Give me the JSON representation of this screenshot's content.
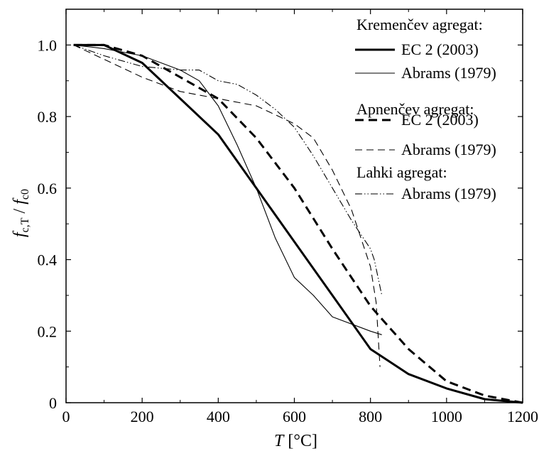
{
  "chart_data": {
    "type": "line",
    "xlabel": {
      "var": "T",
      "unit": " [°C]"
    },
    "ylabel": {
      "f1": "f",
      "s1": "c,T",
      "sep": " / ",
      "f2": "f",
      "s2": "c0"
    },
    "xlim": [
      0,
      1200
    ],
    "ylim": [
      0,
      1.1
    ],
    "xticks": [
      0,
      200,
      400,
      600,
      800,
      1000,
      1200
    ],
    "yticks": [
      0,
      0.2,
      0.4,
      0.6,
      0.8,
      1.0
    ],
    "xtick_labels": [
      "0",
      "200",
      "400",
      "600",
      "800",
      "1000",
      "1200"
    ],
    "ytick_labels": [
      "0",
      "0.2",
      "0.4",
      "0.6",
      "0.8",
      "1.0"
    ],
    "grid": false,
    "legend_position": "top-right",
    "legend_groups": [
      {
        "title": "Kremenčev agregat:",
        "entries": [
          {
            "label": "EC 2 (2003)",
            "series": 0
          },
          {
            "label": "Abrams (1979)",
            "series": 1
          }
        ]
      },
      {
        "title": "Apnenčev agregat:",
        "entries": [
          {
            "label": "EC 2 (2003)",
            "series": 2
          },
          {
            "label": "Abrams (1979)",
            "series": 3
          }
        ]
      },
      {
        "title": "Lahki agregat:",
        "entries": [
          {
            "label": "Abrams (1979)",
            "series": 4
          }
        ]
      }
    ],
    "series": [
      {
        "style": "solid-thick",
        "x": [
          20,
          100,
          200,
          300,
          400,
          500,
          600,
          700,
          800,
          900,
          1000,
          1100,
          1200
        ],
        "y": [
          1.0,
          1.0,
          0.95,
          0.85,
          0.75,
          0.6,
          0.45,
          0.3,
          0.15,
          0.08,
          0.04,
          0.01,
          0.0
        ]
      },
      {
        "style": "solid-thin",
        "x": [
          20,
          100,
          200,
          300,
          350,
          400,
          450,
          500,
          550,
          600,
          650,
          700,
          800,
          830
        ],
        "y": [
          1.0,
          0.99,
          0.97,
          0.93,
          0.9,
          0.83,
          0.72,
          0.6,
          0.46,
          0.35,
          0.3,
          0.24,
          0.2,
          0.19
        ]
      },
      {
        "style": "dashed-thick",
        "x": [
          20,
          100,
          200,
          300,
          400,
          500,
          600,
          700,
          800,
          900,
          1000,
          1100,
          1200
        ],
        "y": [
          1.0,
          1.0,
          0.97,
          0.91,
          0.85,
          0.74,
          0.6,
          0.43,
          0.27,
          0.15,
          0.06,
          0.02,
          0.0
        ]
      },
      {
        "style": "dashed-thin",
        "x": [
          20,
          100,
          200,
          300,
          400,
          500,
          600,
          650,
          700,
          750,
          800,
          815,
          825
        ],
        "y": [
          1.0,
          0.96,
          0.91,
          0.87,
          0.85,
          0.83,
          0.78,
          0.74,
          0.65,
          0.54,
          0.38,
          0.28,
          0.1
        ]
      },
      {
        "style": "dashdotdot-thin",
        "x": [
          20,
          100,
          200,
          300,
          350,
          400,
          450,
          500,
          550,
          600,
          650,
          700,
          750,
          800,
          810,
          830
        ],
        "y": [
          1.0,
          0.97,
          0.94,
          0.93,
          0.93,
          0.9,
          0.89,
          0.86,
          0.82,
          0.77,
          0.69,
          0.6,
          0.51,
          0.43,
          0.4,
          0.3
        ]
      }
    ]
  }
}
